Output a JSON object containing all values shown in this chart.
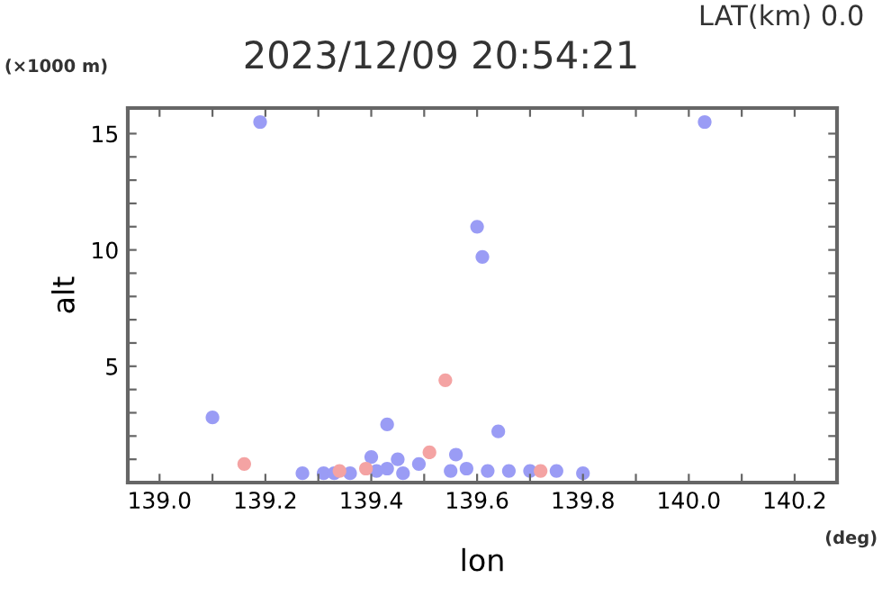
{
  "chart_data": {
    "type": "scatter",
    "title": "2023/12/09 20:54:21",
    "subtitle": "LAT(km) 0.0",
    "xlabel": "lon",
    "ylabel": "alt",
    "annotations": [
      "(×1000 m)",
      "(deg)"
    ],
    "marker": "circle",
    "grid": false,
    "legend": false,
    "xlim": [
      138.94,
      140.28
    ],
    "ylim": [
      0,
      16.1
    ],
    "xticks": [
      {
        "value": 139.0,
        "label": "139.0"
      },
      {
        "value": 139.1,
        "label": null
      },
      139.2,
      {
        "value": 139.3,
        "label": null
      },
      139.4,
      {
        "value": 139.5,
        "label": null
      },
      139.6,
      {
        "value": 139.7,
        "label": null
      },
      139.8,
      {
        "value": 139.9,
        "label": null
      },
      {
        "value": 140.0,
        "label": "140.0"
      },
      {
        "value": 140.1,
        "label": null
      },
      140.2
    ],
    "yticks": [
      {
        "value": 1,
        "label": null
      },
      {
        "value": 2,
        "label": null
      },
      {
        "value": 3,
        "label": null
      },
      {
        "value": 4,
        "label": null
      },
      5,
      {
        "value": 6,
        "label": null
      },
      {
        "value": 7,
        "label": null
      },
      {
        "value": 8,
        "label": null
      },
      {
        "value": 9,
        "label": null
      },
      10,
      {
        "value": 11,
        "label": null
      },
      {
        "value": 12,
        "label": null
      },
      {
        "value": 13,
        "label": null
      },
      {
        "value": 14,
        "label": null
      },
      15
    ],
    "series": [
      {
        "color": "#9a9cf5",
        "x": [
          139.1,
          139.19,
          139.61,
          139.6,
          139.64,
          139.43,
          140.03,
          139.27,
          139.31,
          139.33,
          139.36,
          139.41,
          139.43,
          139.46,
          139.49,
          139.55,
          139.58,
          139.62,
          139.66,
          139.7,
          139.75,
          139.8,
          139.45,
          139.4,
          139.56
        ],
        "values": [
          2.8,
          15.5,
          9.7,
          11.0,
          2.2,
          2.5,
          15.5,
          0.4,
          0.4,
          0.4,
          0.4,
          0.5,
          0.6,
          0.4,
          0.8,
          0.5,
          0.6,
          0.5,
          0.5,
          0.5,
          0.5,
          0.4,
          1.0,
          1.1,
          1.2
        ]
      },
      {
        "color": "#f4a3a3",
        "x": [
          139.16,
          139.54,
          139.34,
          139.39,
          139.51,
          139.72
        ],
        "values": [
          0.8,
          4.4,
          0.5,
          0.6,
          1.3,
          0.5
        ]
      }
    ]
  }
}
